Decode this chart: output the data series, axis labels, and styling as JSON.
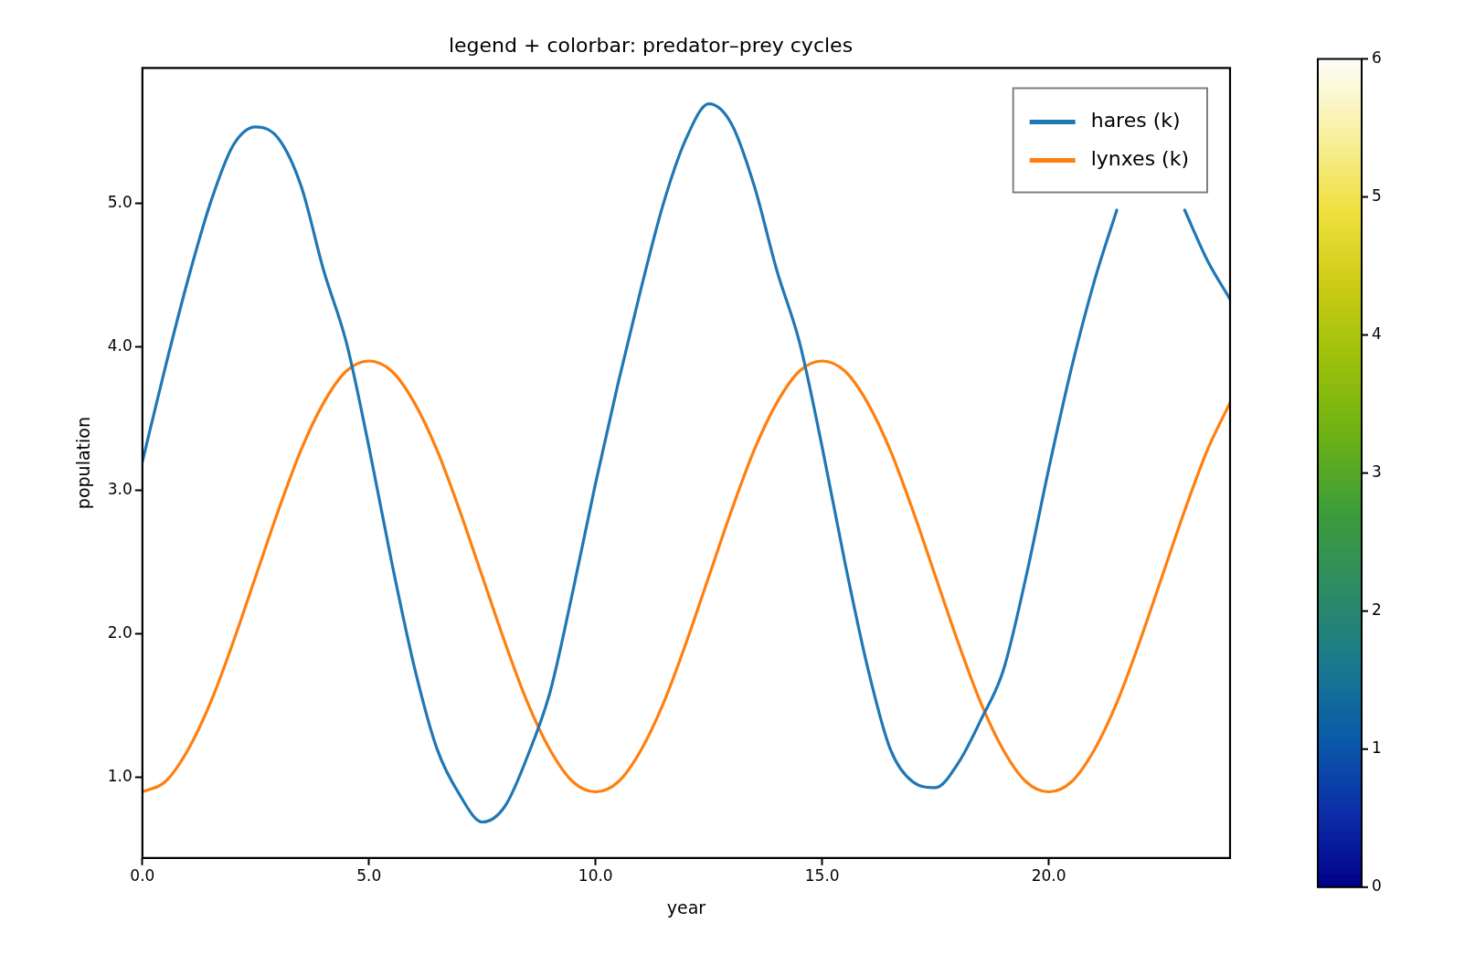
{
  "chart_data": {
    "type": "line",
    "title": "legend + colorbar: predator–prey cycles",
    "xlabel": "year",
    "ylabel": "population",
    "x": [
      0,
      0.5,
      1,
      1.5,
      2,
      2.5,
      3,
      3.5,
      4,
      4.5,
      5,
      5.5,
      6,
      6.5,
      7,
      7.5,
      8,
      8.5,
      9,
      9.5,
      10,
      10.5,
      11,
      11.5,
      12,
      12.5,
      13,
      13.5,
      14,
      14.5,
      15,
      15.5,
      16,
      16.5,
      17,
      17.5,
      18,
      18.5,
      19,
      19.5,
      20,
      20.5,
      21,
      21.5,
      22,
      22.5,
      23,
      23.5,
      24
    ],
    "series": [
      {
        "name": "hares (k)",
        "color": "#1f77b4",
        "values": [
          3.2,
          3.85,
          4.46,
          5.0,
          5.4,
          5.53,
          5.45,
          5.12,
          4.53,
          4.03,
          3.3,
          2.5,
          1.77,
          1.2,
          0.88,
          0.69,
          0.8,
          1.15,
          1.6,
          2.3,
          3.05,
          3.75,
          4.4,
          5.0,
          5.45,
          5.69,
          5.55,
          5.12,
          4.53,
          4.03,
          3.3,
          2.5,
          1.77,
          1.2,
          0.97,
          0.93,
          1.1,
          1.4,
          1.75,
          2.4,
          3.15,
          3.85,
          4.45,
          4.95,
          null,
          null,
          4.95,
          4.6,
          4.33
        ]
      },
      {
        "name": "lynxes (k)",
        "color": "#ff7f0e",
        "values": [
          0.9,
          0.97,
          1.19,
          1.52,
          1.94,
          2.4,
          2.86,
          3.28,
          3.61,
          3.83,
          3.9,
          3.83,
          3.61,
          3.28,
          2.86,
          2.4,
          1.94,
          1.52,
          1.19,
          0.97,
          0.9,
          0.97,
          1.19,
          1.52,
          1.94,
          2.4,
          2.86,
          3.28,
          3.61,
          3.83,
          3.9,
          3.83,
          3.61,
          3.28,
          2.86,
          2.4,
          1.94,
          1.52,
          1.19,
          0.97,
          0.9,
          0.97,
          1.19,
          1.52,
          1.94,
          2.4,
          2.86,
          3.28,
          3.61
        ]
      }
    ],
    "xlim": [
      0,
      24
    ],
    "xticks": [
      {
        "value": 0,
        "label": "0.0"
      },
      {
        "value": 5,
        "label": "5.0"
      },
      {
        "value": 10,
        "label": "10.0"
      },
      {
        "value": 15,
        "label": "15.0"
      },
      {
        "value": 20,
        "label": "20.0"
      }
    ],
    "ylim": [
      0.44,
      5.94
    ],
    "yticks": [
      {
        "value": 1,
        "label": "1.0"
      },
      {
        "value": 2,
        "label": "2.0"
      },
      {
        "value": 3,
        "label": "3.0"
      },
      {
        "value": 4,
        "label": "4.0"
      },
      {
        "value": 5,
        "label": "5.0"
      }
    ],
    "clim": [
      0,
      6
    ],
    "cticks": [
      0,
      1,
      2,
      3,
      4,
      5,
      6
    ],
    "legend": "top right",
    "grid": false,
    "marker": "none",
    "line_style": "solid"
  }
}
